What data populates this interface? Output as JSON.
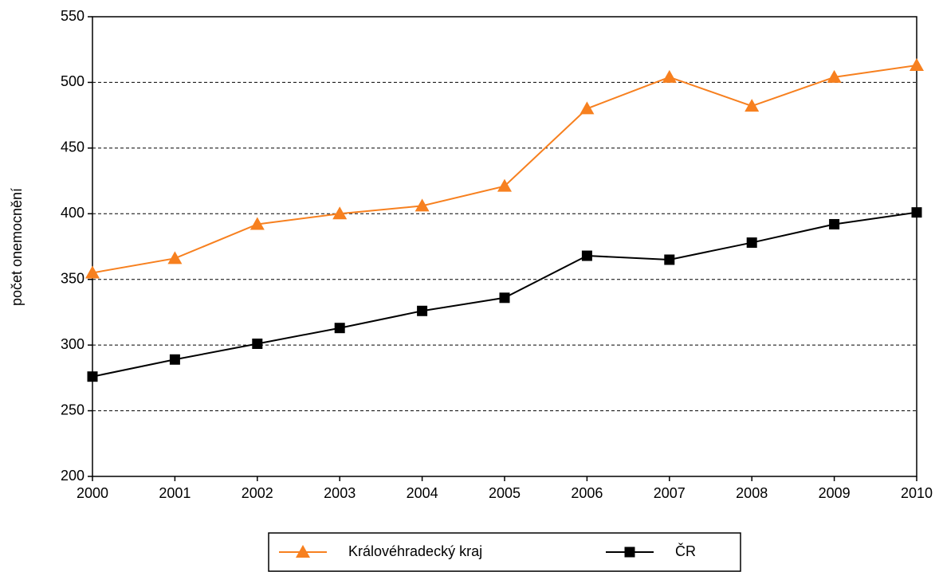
{
  "chart_data": {
    "type": "line",
    "y_label": "počet onemocnění",
    "x": [
      2000,
      2001,
      2002,
      2003,
      2004,
      2005,
      2006,
      2007,
      2008,
      2009,
      2010
    ],
    "xlim": [
      2000,
      2010
    ],
    "xticks": [
      2000,
      2001,
      2002,
      2003,
      2004,
      2005,
      2006,
      2007,
      2008,
      2009,
      2010
    ],
    "ylim": [
      200,
      550
    ],
    "yticks": [
      200,
      250,
      300,
      350,
      400,
      450,
      500,
      550
    ],
    "grid": true,
    "legend": "bottom",
    "series": [
      {
        "name": "Královéhradecký kraj",
        "color": "#f7801f",
        "marker": "triangle",
        "values": [
          355,
          366,
          392,
          400,
          406,
          421,
          480,
          504,
          482,
          504,
          513
        ]
      },
      {
        "name": "ČR",
        "color": "#000000",
        "marker": "square",
        "values": [
          276,
          289,
          301,
          313,
          326,
          336,
          368,
          365,
          378,
          392,
          401
        ]
      }
    ]
  }
}
